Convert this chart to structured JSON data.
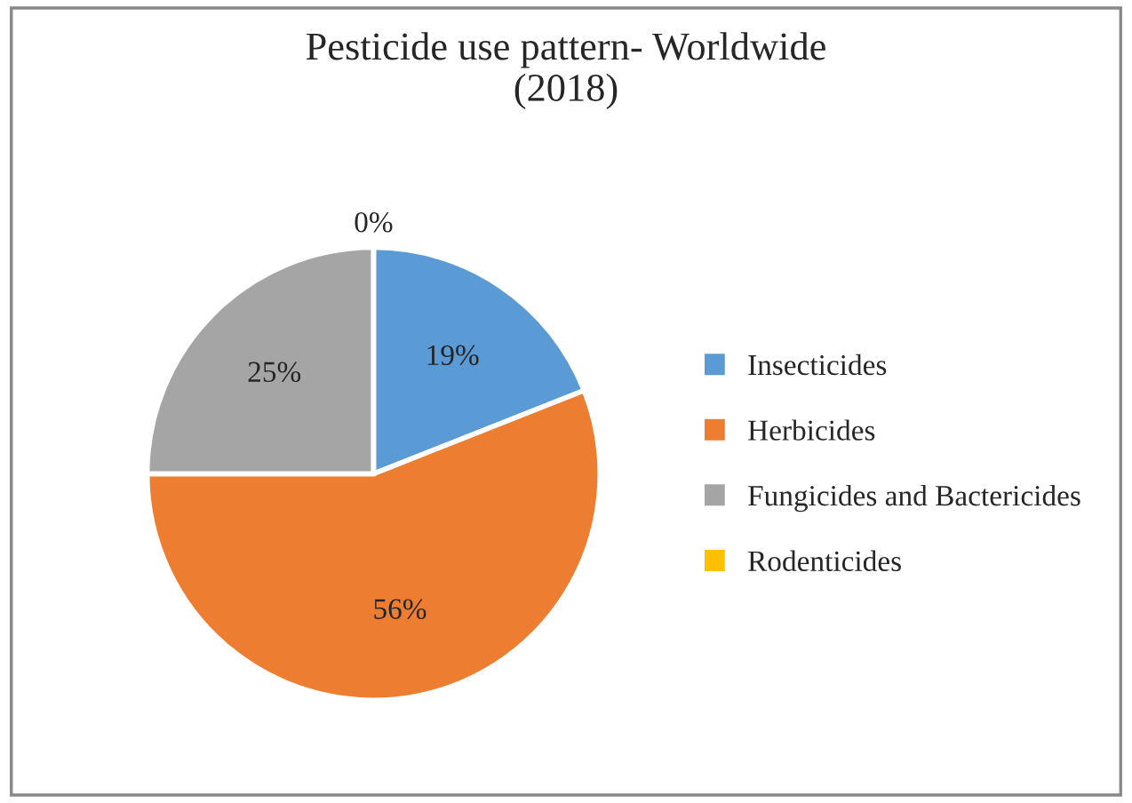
{
  "chart_data": {
    "type": "pie",
    "title": "Pesticide use pattern- Worldwide\n(2018)",
    "categories": [
      "Insecticides",
      "Herbicides",
      "Fungicides and Bactericides",
      "Rodenticides"
    ],
    "values": [
      19,
      56,
      25,
      0
    ],
    "colors": [
      "#5b9bd5",
      "#ed7d31",
      "#a5a5a5",
      "#ffc000"
    ],
    "value_labels": [
      "19%",
      "56%",
      "25%",
      "0%"
    ],
    "legend": "right"
  }
}
